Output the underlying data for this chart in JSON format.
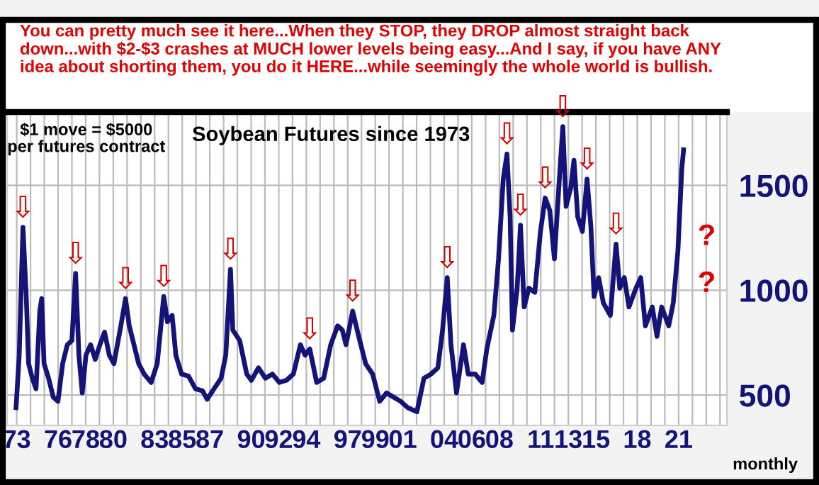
{
  "chart_data": {
    "type": "line",
    "title": "Soybean Futures since 1973",
    "annotations": [
      "You can pretty much see it here...When they STOP, they DROP almost straight back\ndown...with $2-$3 crashes at MUCH lower levels being easy...And I say, if you have ANY\nidea about shorting them, you do it HERE...while seemingly the whole world is bullish.",
      "$1 move = $5000\nper futures contract",
      "?",
      "?",
      "monthly",
      {
        "text": "⇩",
        "x": 1973.45,
        "y": 1300
      },
      {
        "text": "⇩",
        "x": 1977.27,
        "y": 1080
      },
      {
        "text": "⇩",
        "x": 1980.89,
        "y": 960
      },
      {
        "text": "⇩",
        "x": 1983.66,
        "y": 970
      },
      {
        "text": "⇩",
        "x": 1988.5,
        "y": 1100
      },
      {
        "text": "⇩",
        "x": 1994.25,
        "y": 720
      },
      {
        "text": "⇩",
        "x": 1997.36,
        "y": 900
      },
      {
        "text": "⇩",
        "x": 2004.22,
        "y": 1060
      },
      {
        "text": "⇩",
        "x": 2008.55,
        "y": 1650
      },
      {
        "text": "⇩",
        "x": 2009.53,
        "y": 1310
      },
      {
        "text": "⇩",
        "x": 2011.32,
        "y": 1440
      },
      {
        "text": "⇩",
        "x": 2012.6,
        "y": 1780
      },
      {
        "text": "⇩",
        "x": 2014.36,
        "y": 1530
      },
      {
        "text": "⇩",
        "x": 2016.46,
        "y": 1220
      }
    ],
    "x": [
      1972.95,
      1973.18,
      1973.45,
      1973.69,
      1973.86,
      1974.13,
      1974.4,
      1974.67,
      1974.81,
      1974.98,
      1975.31,
      1975.65,
      1975.99,
      1976.33,
      1976.67,
      1977.0,
      1977.27,
      1977.51,
      1977.75,
      1978.02,
      1978.36,
      1978.69,
      1979.03,
      1979.37,
      1979.71,
      1980.05,
      1980.55,
      1980.89,
      1981.16,
      1981.5,
      1981.84,
      1982.24,
      1982.75,
      1983.19,
      1983.66,
      1983.93,
      1984.27,
      1984.54,
      1984.95,
      1985.46,
      1985.96,
      1986.47,
      1986.81,
      1987.31,
      1987.82,
      1988.16,
      1988.5,
      1988.67,
      1989.17,
      1989.68,
      1990.02,
      1990.53,
      1991.03,
      1991.54,
      1992.05,
      1992.55,
      1993.06,
      1993.57,
      1993.91,
      1994.25,
      1994.75,
      1995.26,
      1995.77,
      1996.27,
      1996.61,
      1996.88,
      1997.36,
      1997.8,
      1998.3,
      1998.81,
      1999.32,
      1999.82,
      2000.33,
      2000.84,
      2001.35,
      2002.02,
      2002.53,
      2003.04,
      2003.54,
      2003.88,
      2004.22,
      2004.49,
      2004.89,
      2005.4,
      2005.74,
      2006.25,
      2006.75,
      2007.09,
      2007.6,
      2007.94,
      2008.28,
      2008.55,
      2008.78,
      2008.95,
      2009.29,
      2009.53,
      2009.8,
      2010.14,
      2010.57,
      2010.98,
      2011.32,
      2011.66,
      2011.99,
      2012.33,
      2012.6,
      2012.84,
      2013.18,
      2013.41,
      2013.68,
      2014.02,
      2014.36,
      2014.63,
      2014.87,
      2015.2,
      2015.54,
      2016.05,
      2016.46,
      2016.73,
      2017.06,
      2017.4,
      2017.91,
      2018.25,
      2018.59,
      2019.09,
      2019.43,
      2019.77,
      2020.28,
      2020.61,
      2020.95,
      2021.23,
      2021.36
    ],
    "series": [
      {
        "color": "#141478",
        "values": [
          440,
          690,
          1300,
          970,
          650,
          580,
          530,
          900,
          960,
          650,
          580,
          490,
          470,
          650,
          740,
          760,
          1080,
          690,
          510,
          690,
          740,
          670,
          740,
          800,
          690,
          650,
          830,
          960,
          830,
          740,
          650,
          600,
          560,
          650,
          970,
          850,
          880,
          690,
          600,
          590,
          530,
          520,
          480,
          530,
          580,
          690,
          1100,
          810,
          760,
          600,
          570,
          630,
          580,
          600,
          560,
          570,
          600,
          740,
          690,
          720,
          560,
          580,
          740,
          830,
          810,
          740,
          900,
          780,
          650,
          600,
          470,
          510,
          490,
          470,
          440,
          420,
          580,
          600,
          630,
          810,
          1060,
          740,
          510,
          740,
          600,
          600,
          560,
          720,
          880,
          1150,
          1530,
          1650,
          1350,
          810,
          1010,
          1310,
          920,
          1010,
          990,
          1280,
          1440,
          1380,
          1150,
          1510,
          1780,
          1400,
          1490,
          1620,
          1350,
          1280,
          1530,
          1310,
          970,
          1060,
          940,
          880,
          1220,
          1010,
          1060,
          920,
          1010,
          1060,
          830,
          920,
          780,
          920,
          830,
          940,
          1190,
          1580,
          1670
        ]
      }
    ],
    "xlim": [
      1972.3,
      2024.5
    ],
    "ylim": [
      355,
      1850
    ],
    "yticks": [
      500,
      1000,
      1500
    ],
    "xticks": [
      {
        "value": 1973,
        "label": "73"
      },
      {
        "value": 1974,
        "label": null
      },
      {
        "value": 1975,
        "label": null
      },
      {
        "value": 1976,
        "label": "76"
      },
      {
        "value": 1977,
        "label": null
      },
      {
        "value": 1978,
        "label": "78"
      },
      {
        "value": 1979,
        "label": null
      },
      {
        "value": 1980,
        "label": "80"
      },
      {
        "value": 1981,
        "label": null
      },
      {
        "value": 1982,
        "label": null
      },
      {
        "value": 1983,
        "label": "83"
      },
      {
        "value": 1984,
        "label": null
      },
      {
        "value": 1985,
        "label": "85"
      },
      {
        "value": 1986,
        "label": null
      },
      {
        "value": 1987,
        "label": "87"
      },
      {
        "value": 1988,
        "label": null
      },
      {
        "value": 1989,
        "label": null
      },
      {
        "value": 1990,
        "label": "90"
      },
      {
        "value": 1991,
        "label": null
      },
      {
        "value": 1992,
        "label": "92"
      },
      {
        "value": 1993,
        "label": null
      },
      {
        "value": 1994,
        "label": "94"
      },
      {
        "value": 1995,
        "label": null
      },
      {
        "value": 1996,
        "label": null
      },
      {
        "value": 1997,
        "label": "97"
      },
      {
        "value": 1998,
        "label": null
      },
      {
        "value": 1999,
        "label": "99"
      },
      {
        "value": 2000,
        "label": null
      },
      {
        "value": 2001,
        "label": "01"
      },
      {
        "value": 2002,
        "label": null
      },
      {
        "value": 2003,
        "label": null
      },
      {
        "value": 2004,
        "label": "04"
      },
      {
        "value": 2005,
        "label": null
      },
      {
        "value": 2006,
        "label": "06"
      },
      {
        "value": 2007,
        "label": null
      },
      {
        "value": 2008,
        "label": "08"
      },
      {
        "value": 2009,
        "label": null
      },
      {
        "value": 2010,
        "label": null
      },
      {
        "value": 2011,
        "label": "11"
      },
      {
        "value": 2012,
        "label": null
      },
      {
        "value": 2013,
        "label": "13"
      },
      {
        "value": 2014,
        "label": null
      },
      {
        "value": 2015,
        "label": "15"
      },
      {
        "value": 2016,
        "label": null
      },
      {
        "value": 2017,
        "label": null
      },
      {
        "value": 2018,
        "label": "18"
      },
      {
        "value": 2019,
        "label": null
      },
      {
        "value": 2020,
        "label": null
      },
      {
        "value": 2021,
        "label": "21"
      },
      {
        "value": 2022,
        "label": null
      },
      {
        "value": 2023,
        "label": null
      },
      {
        "value": 2024,
        "label": null
      }
    ],
    "grid": true,
    "marker": "none",
    "line_style": "solid"
  }
}
